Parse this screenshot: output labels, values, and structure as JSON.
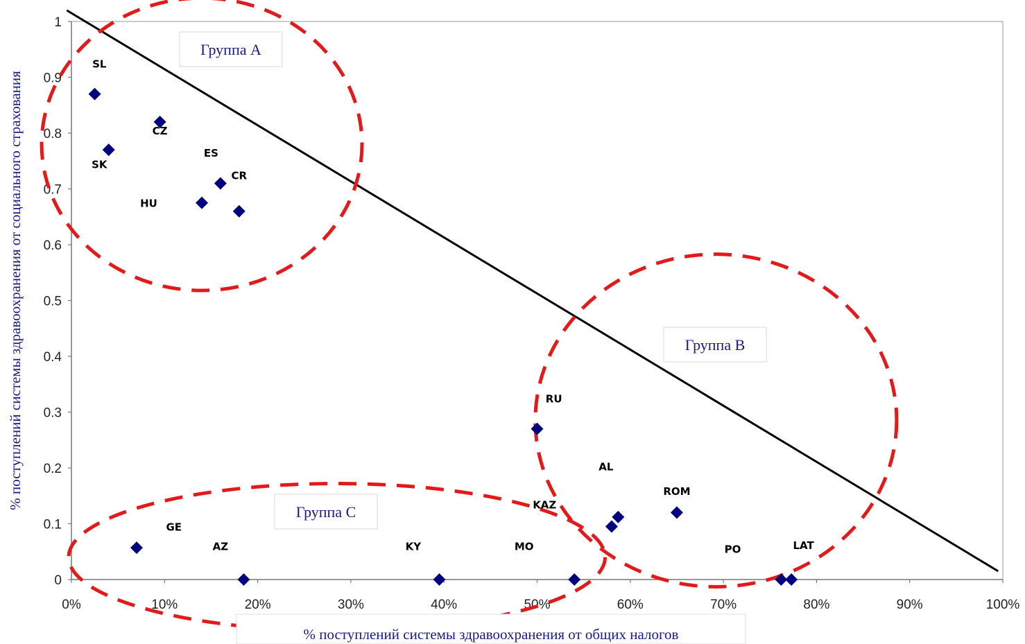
{
  "chart_data": {
    "type": "scatter",
    "title": "",
    "xlabel": "% поступлений системы здравоохранения от общих налогов",
    "ylabel": "% поступлений системы здравоохранения от социального страхования",
    "xlim": [
      0,
      1
    ],
    "ylim": [
      0,
      1
    ],
    "x_ticks": [
      "0%",
      "10%",
      "20%",
      "30%",
      "40%",
      "50%",
      "60%",
      "70%",
      "80%",
      "90%",
      "100%"
    ],
    "y_ticks": [
      "0",
      "0.1",
      "0.2",
      "0.3",
      "0.4",
      "0.5",
      "0.6",
      "0.7",
      "0.8",
      "0.9",
      "1"
    ],
    "marker_color": "#00007f",
    "grid": false,
    "points": [
      {
        "x": 0.025,
        "y": 0.87
      },
      {
        "x": 0.095,
        "y": 0.82
      },
      {
        "x": 0.04,
        "y": 0.77
      },
      {
        "x": 0.14,
        "y": 0.675
      },
      {
        "x": 0.16,
        "y": 0.71
      },
      {
        "x": 0.18,
        "y": 0.66
      },
      {
        "x": 0.07,
        "y": 0.057
      },
      {
        "x": 0.185,
        "y": 0.0
      },
      {
        "x": 0.395,
        "y": 0.0
      },
      {
        "x": 0.54,
        "y": 0.0
      },
      {
        "x": 0.5,
        "y": 0.27
      },
      {
        "x": 0.58,
        "y": 0.095
      },
      {
        "x": 0.587,
        "y": 0.112
      },
      {
        "x": 0.65,
        "y": 0.12
      },
      {
        "x": 0.762,
        "y": 0.0
      },
      {
        "x": 0.773,
        "y": 0.0
      }
    ],
    "point_labels": [
      {
        "text": "SL",
        "x": 0.03,
        "y": 0.925
      },
      {
        "text": "CZ",
        "x": 0.095,
        "y": 0.805
      },
      {
        "text": "SK",
        "x": 0.03,
        "y": 0.745
      },
      {
        "text": "ES",
        "x": 0.15,
        "y": 0.765
      },
      {
        "text": "CR",
        "x": 0.18,
        "y": 0.725
      },
      {
        "text": "HU",
        "x": 0.083,
        "y": 0.675
      },
      {
        "text": "GE",
        "x": 0.11,
        "y": 0.095
      },
      {
        "text": "AZ",
        "x": 0.16,
        "y": 0.06
      },
      {
        "text": "KY",
        "x": 0.367,
        "y": 0.06
      },
      {
        "text": "MO",
        "x": 0.486,
        "y": 0.06
      },
      {
        "text": "RU",
        "x": 0.518,
        "y": 0.325
      },
      {
        "text": "AL",
        "x": 0.574,
        "y": 0.203
      },
      {
        "text": "KAZ",
        "x": 0.508,
        "y": 0.135
      },
      {
        "text": "ROM",
        "x": 0.65,
        "y": 0.159
      },
      {
        "text": "PO",
        "x": 0.71,
        "y": 0.055
      },
      {
        "text": "LAT",
        "x": 0.786,
        "y": 0.062
      }
    ],
    "trendline": {
      "x": [
        -0.005,
        0.995
      ],
      "y": [
        1.02,
        0.015
      ],
      "color": "#000000"
    },
    "groups": [
      {
        "name": "Группа А",
        "cx": 0.14,
        "cy": 0.78,
        "rx": 0.172,
        "ry": 0.262
      },
      {
        "name": "Группа В",
        "cx": 0.692,
        "cy": 0.285,
        "rx": 0.194,
        "ry": 0.298
      },
      {
        "name": "Группа С",
        "cx": 0.285,
        "cy": 0.04,
        "rx": 0.288,
        "ry": 0.132
      }
    ],
    "group_ellipse_color": "#e31a1a"
  }
}
